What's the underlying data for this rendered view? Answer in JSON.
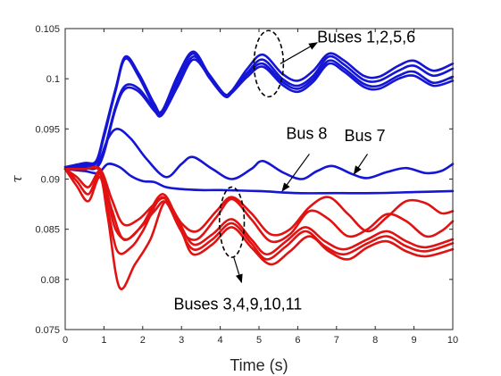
{
  "chart_data": {
    "type": "line",
    "xlabel": "Time (s)",
    "ylabel": "τ",
    "xlim": [
      0,
      10
    ],
    "ylim": [
      0.075,
      0.105
    ],
    "xticks": [
      0,
      1,
      2,
      3,
      4,
      5,
      6,
      7,
      8,
      9,
      10
    ],
    "yticks": [
      0.075,
      0.08,
      0.085,
      0.09,
      0.095,
      0.1,
      0.105
    ],
    "xtick_labels": [
      "0",
      "1",
      "2",
      "3",
      "4",
      "5",
      "6",
      "7",
      "8",
      "9",
      "10"
    ],
    "ytick_labels": [
      "0.075",
      "0.08",
      "0.085",
      "0.09",
      "0.095",
      "0.1",
      "0.105"
    ],
    "grid": false,
    "colors": {
      "blue": "#1515d6",
      "red": "#e01212",
      "axis": "#262626",
      "annotation": "#000000"
    },
    "series": [
      {
        "color": "blue",
        "points": [
          [
            0,
            0.0912
          ],
          [
            0.5,
            0.0916
          ],
          [
            0.8,
            0.0918
          ],
          [
            1.0,
            0.0945
          ],
          [
            1.3,
            0.099
          ],
          [
            1.55,
            0.1022
          ],
          [
            1.9,
            0.1005
          ],
          [
            2.3,
            0.0975
          ],
          [
            2.5,
            0.0968
          ],
          [
            2.9,
            0.1003
          ],
          [
            3.3,
            0.1027
          ],
          [
            3.7,
            0.1005
          ],
          [
            4.1,
            0.0985
          ],
          [
            4.3,
            0.0988
          ],
          [
            4.7,
            0.101
          ],
          [
            5.1,
            0.1024
          ],
          [
            5.6,
            0.1005
          ],
          [
            6.0,
            0.0998
          ],
          [
            6.4,
            0.1008
          ],
          [
            6.8,
            0.1025
          ],
          [
            7.2,
            0.1018
          ],
          [
            7.7,
            0.1003
          ],
          [
            8.1,
            0.1002
          ],
          [
            8.6,
            0.1013
          ],
          [
            9.0,
            0.1018
          ],
          [
            9.5,
            0.1008
          ],
          [
            10,
            0.1015
          ]
        ]
      },
      {
        "color": "blue",
        "points": [
          [
            0,
            0.0912
          ],
          [
            0.5,
            0.0914
          ],
          [
            0.8,
            0.0916
          ],
          [
            1.0,
            0.0942
          ],
          [
            1.3,
            0.0988
          ],
          [
            1.55,
            0.102
          ],
          [
            1.9,
            0.1002
          ],
          [
            2.3,
            0.0972
          ],
          [
            2.5,
            0.0966
          ],
          [
            2.9,
            0.1
          ],
          [
            3.3,
            0.1025
          ],
          [
            3.7,
            0.1002
          ],
          [
            4.1,
            0.0983
          ],
          [
            4.3,
            0.0986
          ],
          [
            4.7,
            0.1006
          ],
          [
            5.1,
            0.1019
          ],
          [
            5.6,
            0.1
          ],
          [
            6.0,
            0.0993
          ],
          [
            6.4,
            0.1003
          ],
          [
            6.8,
            0.1022
          ],
          [
            7.2,
            0.1014
          ],
          [
            7.7,
            0.0999
          ],
          [
            8.1,
            0.0998
          ],
          [
            8.6,
            0.1008
          ],
          [
            9.0,
            0.1013
          ],
          [
            9.5,
            0.1003
          ],
          [
            10,
            0.101
          ]
        ]
      },
      {
        "color": "blue",
        "points": [
          [
            0,
            0.091
          ],
          [
            0.5,
            0.0912
          ],
          [
            0.8,
            0.0912
          ],
          [
            1.0,
            0.0928
          ],
          [
            1.3,
            0.0972
          ],
          [
            1.55,
            0.0993
          ],
          [
            1.9,
            0.099
          ],
          [
            2.3,
            0.097
          ],
          [
            2.5,
            0.0966
          ],
          [
            2.9,
            0.0995
          ],
          [
            3.3,
            0.1022
          ],
          [
            3.7,
            0.1005
          ],
          [
            4.1,
            0.0985
          ],
          [
            4.3,
            0.0988
          ],
          [
            4.7,
            0.1005
          ],
          [
            5.1,
            0.1015
          ],
          [
            5.6,
            0.0997
          ],
          [
            6.0,
            0.099
          ],
          [
            6.4,
            0.1
          ],
          [
            6.8,
            0.1018
          ],
          [
            7.2,
            0.101
          ],
          [
            7.7,
            0.0995
          ],
          [
            8.1,
            0.0993
          ],
          [
            8.6,
            0.1003
          ],
          [
            9.0,
            0.1007
          ],
          [
            9.5,
            0.0996
          ],
          [
            10,
            0.1002
          ]
        ]
      },
      {
        "color": "blue",
        "points": [
          [
            0,
            0.091
          ],
          [
            0.5,
            0.0911
          ],
          [
            0.8,
            0.0911
          ],
          [
            1.0,
            0.0926
          ],
          [
            1.3,
            0.097
          ],
          [
            1.55,
            0.099
          ],
          [
            1.9,
            0.0987
          ],
          [
            2.3,
            0.0968
          ],
          [
            2.5,
            0.0964
          ],
          [
            2.9,
            0.0992
          ],
          [
            3.3,
            0.1019
          ],
          [
            3.7,
            0.1003
          ],
          [
            4.1,
            0.0983
          ],
          [
            4.3,
            0.0986
          ],
          [
            4.7,
            0.1002
          ],
          [
            5.1,
            0.1012
          ],
          [
            5.6,
            0.0994
          ],
          [
            6.0,
            0.0987
          ],
          [
            6.4,
            0.0997
          ],
          [
            6.8,
            0.1015
          ],
          [
            7.2,
            0.1007
          ],
          [
            7.7,
            0.0992
          ],
          [
            8.1,
            0.099
          ],
          [
            8.6,
            0.1
          ],
          [
            9.0,
            0.1003
          ],
          [
            9.5,
            0.0993
          ],
          [
            10,
            0.0998
          ]
        ]
      },
      {
        "color": "blue",
        "points": [
          [
            0,
            0.091
          ],
          [
            0.4,
            0.0913
          ],
          [
            0.8,
            0.0912
          ],
          [
            1.1,
            0.094
          ],
          [
            1.35,
            0.095
          ],
          [
            1.7,
            0.094
          ],
          [
            2.1,
            0.092
          ],
          [
            2.6,
            0.0902
          ],
          [
            3.0,
            0.0915
          ],
          [
            3.3,
            0.0922
          ],
          [
            3.8,
            0.091
          ],
          [
            4.3,
            0.09
          ],
          [
            4.8,
            0.091
          ],
          [
            5.1,
            0.0918
          ],
          [
            5.6,
            0.0907
          ],
          [
            6.1,
            0.09
          ],
          [
            6.5,
            0.0908
          ],
          [
            6.9,
            0.0913
          ],
          [
            7.4,
            0.0905
          ],
          [
            7.8,
            0.0901
          ],
          [
            8.3,
            0.0907
          ],
          [
            8.8,
            0.0911
          ],
          [
            9.3,
            0.0906
          ],
          [
            9.7,
            0.0908
          ],
          [
            10,
            0.0915
          ]
        ]
      },
      {
        "color": "blue",
        "points": [
          [
            0,
            0.091
          ],
          [
            0.5,
            0.0908
          ],
          [
            0.85,
            0.0906
          ],
          [
            1.1,
            0.0915
          ],
          [
            1.4,
            0.0912
          ],
          [
            1.7,
            0.0903
          ],
          [
            2.0,
            0.0898
          ],
          [
            2.3,
            0.0897
          ],
          [
            2.6,
            0.0892
          ],
          [
            3.0,
            0.089
          ],
          [
            3.5,
            0.0889
          ],
          [
            4.0,
            0.0889
          ],
          [
            5.0,
            0.0888
          ],
          [
            6.0,
            0.0886
          ],
          [
            7.0,
            0.0886
          ],
          [
            8.0,
            0.0886
          ],
          [
            9.0,
            0.0887
          ],
          [
            10,
            0.0888
          ]
        ]
      },
      {
        "color": "red",
        "points": [
          [
            0,
            0.091
          ],
          [
            0.3,
            0.0902
          ],
          [
            0.6,
            0.0892
          ],
          [
            0.9,
            0.0908
          ],
          [
            1.1,
            0.088
          ],
          [
            1.3,
            0.085
          ],
          [
            1.6,
            0.084
          ],
          [
            2.0,
            0.0855
          ],
          [
            2.5,
            0.0885
          ],
          [
            2.9,
            0.086
          ],
          [
            3.3,
            0.0835
          ],
          [
            3.8,
            0.0845
          ],
          [
            4.3,
            0.086
          ],
          [
            4.8,
            0.084
          ],
          [
            5.2,
            0.0825
          ],
          [
            5.7,
            0.0838
          ],
          [
            6.2,
            0.0852
          ],
          [
            6.7,
            0.0838
          ],
          [
            7.2,
            0.083
          ],
          [
            7.8,
            0.084
          ],
          [
            8.3,
            0.0848
          ],
          [
            8.8,
            0.0838
          ],
          [
            9.3,
            0.0832
          ],
          [
            10,
            0.084
          ]
        ]
      },
      {
        "color": "red",
        "points": [
          [
            0,
            0.091
          ],
          [
            0.3,
            0.0898
          ],
          [
            0.6,
            0.0885
          ],
          [
            0.9,
            0.0905
          ],
          [
            1.1,
            0.087
          ],
          [
            1.35,
            0.0828
          ],
          [
            1.7,
            0.0832
          ],
          [
            2.0,
            0.0848
          ],
          [
            2.5,
            0.0882
          ],
          [
            2.9,
            0.0855
          ],
          [
            3.3,
            0.083
          ],
          [
            3.8,
            0.084
          ],
          [
            4.3,
            0.0856
          ],
          [
            4.8,
            0.0836
          ],
          [
            5.2,
            0.082
          ],
          [
            5.7,
            0.0833
          ],
          [
            6.2,
            0.0848
          ],
          [
            6.7,
            0.0833
          ],
          [
            7.2,
            0.0825
          ],
          [
            7.8,
            0.0836
          ],
          [
            8.3,
            0.0843
          ],
          [
            8.8,
            0.0833
          ],
          [
            9.3,
            0.0828
          ],
          [
            10,
            0.0836
          ]
        ]
      },
      {
        "color": "red",
        "points": [
          [
            0,
            0.091
          ],
          [
            0.3,
            0.0893
          ],
          [
            0.6,
            0.0878
          ],
          [
            0.9,
            0.0902
          ],
          [
            1.1,
            0.0862
          ],
          [
            1.4,
            0.0792
          ],
          [
            1.8,
            0.0815
          ],
          [
            2.2,
            0.084
          ],
          [
            2.6,
            0.0878
          ],
          [
            3.0,
            0.0848
          ],
          [
            3.3,
            0.0825
          ],
          [
            3.8,
            0.0835
          ],
          [
            4.3,
            0.0852
          ],
          [
            4.8,
            0.0832
          ],
          [
            5.3,
            0.0815
          ],
          [
            5.8,
            0.0828
          ],
          [
            6.3,
            0.0843
          ],
          [
            6.8,
            0.0828
          ],
          [
            7.3,
            0.082
          ],
          [
            7.8,
            0.0832
          ],
          [
            8.3,
            0.0838
          ],
          [
            8.8,
            0.0828
          ],
          [
            9.3,
            0.0823
          ],
          [
            10,
            0.083
          ]
        ]
      },
      {
        "color": "red",
        "points": [
          [
            0,
            0.091
          ],
          [
            0.5,
            0.091
          ],
          [
            0.9,
            0.0908
          ],
          [
            1.2,
            0.087
          ],
          [
            1.5,
            0.084
          ],
          [
            1.9,
            0.085
          ],
          [
            2.3,
            0.0868
          ],
          [
            2.6,
            0.0877
          ],
          [
            3.0,
            0.0848
          ],
          [
            3.4,
            0.084
          ],
          [
            3.9,
            0.0862
          ],
          [
            4.3,
            0.088
          ],
          [
            4.8,
            0.086
          ],
          [
            5.3,
            0.0838
          ],
          [
            5.8,
            0.0845
          ],
          [
            6.3,
            0.0868
          ],
          [
            6.8,
            0.086
          ],
          [
            7.3,
            0.0843
          ],
          [
            7.8,
            0.085
          ],
          [
            8.3,
            0.0865
          ],
          [
            8.8,
            0.0858
          ],
          [
            9.3,
            0.0843
          ],
          [
            9.7,
            0.0848
          ],
          [
            10,
            0.0858
          ]
        ]
      },
      {
        "color": "red",
        "points": [
          [
            0,
            0.091
          ],
          [
            0.5,
            0.091
          ],
          [
            0.9,
            0.091
          ],
          [
            1.2,
            0.088
          ],
          [
            1.5,
            0.0855
          ],
          [
            1.9,
            0.086
          ],
          [
            2.3,
            0.0875
          ],
          [
            2.6,
            0.088
          ],
          [
            3.0,
            0.0856
          ],
          [
            3.4,
            0.0848
          ],
          [
            3.9,
            0.0868
          ],
          [
            4.3,
            0.0882
          ],
          [
            4.8,
            0.0866
          ],
          [
            5.3,
            0.0845
          ],
          [
            5.8,
            0.085
          ],
          [
            6.3,
            0.0872
          ],
          [
            6.8,
            0.0882
          ],
          [
            7.3,
            0.0865
          ],
          [
            7.8,
            0.0848
          ],
          [
            8.3,
            0.0862
          ],
          [
            8.8,
            0.0878
          ],
          [
            9.3,
            0.0876
          ],
          [
            9.7,
            0.0866
          ],
          [
            10,
            0.0868
          ]
        ]
      }
    ],
    "annotations": [
      {
        "text": "Buses 1,2,5,6",
        "x": 6.5,
        "y": 0.1036
      },
      {
        "text": "Bus 8",
        "x": 5.7,
        "y": 0.094
      },
      {
        "text": "Bus 7",
        "x": 7.2,
        "y": 0.0938
      },
      {
        "text": "Buses 3,4,9,10,11",
        "x": 2.8,
        "y": 0.077
      }
    ],
    "ellipses": [
      {
        "cx": 5.25,
        "cy": 0.1015,
        "rx": 0.38,
        "ry": 0.0033
      },
      {
        "cx": 4.3,
        "cy": 0.0857,
        "rx": 0.32,
        "ry": 0.0035
      }
    ],
    "arrows": [
      {
        "from": [
          5.55,
          0.1015
        ],
        "to": [
          6.5,
          0.1036
        ]
      },
      {
        "from": [
          6.3,
          0.0925
        ],
        "to": [
          5.6,
          0.0888
        ]
      },
      {
        "from": [
          7.8,
          0.0925
        ],
        "to": [
          7.45,
          0.0905
        ]
      },
      {
        "from": [
          4.35,
          0.0822
        ],
        "to": [
          4.55,
          0.0797
        ]
      }
    ]
  }
}
